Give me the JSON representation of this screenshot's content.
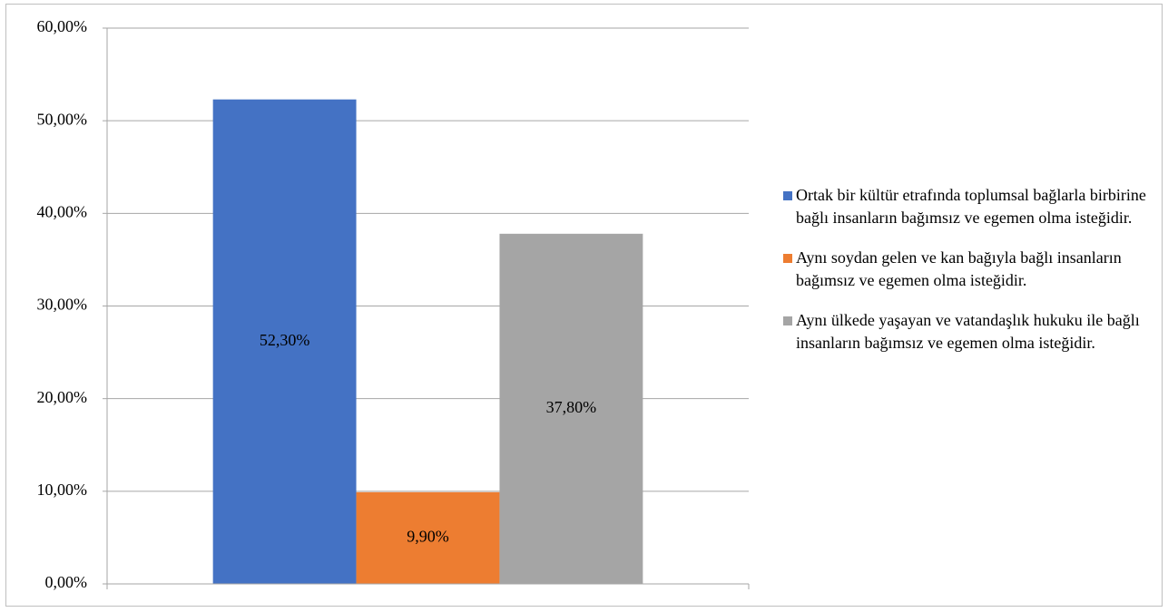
{
  "chart_data": {
    "type": "bar",
    "categories": [
      null
    ],
    "series": [
      {
        "name": "Ortak bir kültür etrafında toplumsal bağlarla birbirine bağlı insanların bağımsız ve egemen olma isteğidir.",
        "color": "#4472c4",
        "values": [
          52.3
        ],
        "value_labels": [
          "52,30%"
        ]
      },
      {
        "name": "Aynı soydan gelen ve kan bağıyla bağlı insanların bağımsız ve egemen olma isteğidir.",
        "color": "#ed7d31",
        "values": [
          9.9
        ],
        "value_labels": [
          "9,90%"
        ]
      },
      {
        "name": "Aynı ülkede yaşayan ve vatandaşlık hukuku ile bağlı insanların bağımsız ve egemen olma isteğidir.",
        "color": "#a5a5a5",
        "values": [
          37.8
        ],
        "value_labels": [
          "37,80%"
        ]
      }
    ],
    "ylim": [
      0,
      60
    ],
    "yticks": [
      {
        "value": 0,
        "label": "0,00%"
      },
      {
        "value": 10,
        "label": "10,00%"
      },
      {
        "value": 20,
        "label": "20,00%"
      },
      {
        "value": 30,
        "label": "30,00%"
      },
      {
        "value": 40,
        "label": "40,00%"
      },
      {
        "value": 50,
        "label": "50,00%"
      },
      {
        "value": 60,
        "label": "60,00%"
      }
    ],
    "grid": true,
    "legend": "right"
  }
}
